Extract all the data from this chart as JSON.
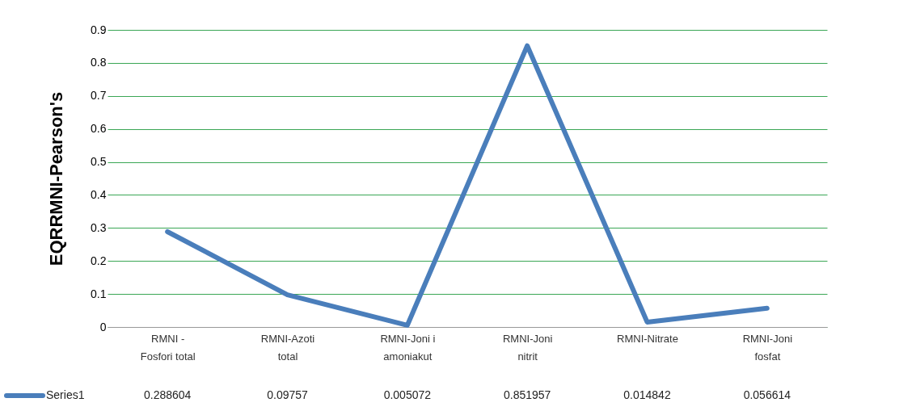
{
  "chart_data": {
    "type": "line",
    "ylabel": "EQRRMNI-Pearson's",
    "categories": [
      "RMNI - Fosfori total",
      "RMNI-Azoti total",
      "RMNI-Joni i amoniakut",
      "RMNI-Joni nitrit",
      "RMNI-Nitrate",
      "RMNI-Joni fosfat"
    ],
    "series": [
      {
        "name": "Series1",
        "color": "#4a7ebb",
        "values": [
          0.288604,
          0.09757,
          0.005072,
          0.851957,
          0.014842,
          0.056614
        ]
      }
    ],
    "ylim": [
      0,
      0.9
    ],
    "yticks": [
      0,
      0.1,
      0.2,
      0.3,
      0.4,
      0.5,
      0.6,
      0.7,
      0.8,
      0.9
    ],
    "grid": "y",
    "legend": "bottom left",
    "marker": "none",
    "line_style": "solid",
    "data_labels": true
  }
}
